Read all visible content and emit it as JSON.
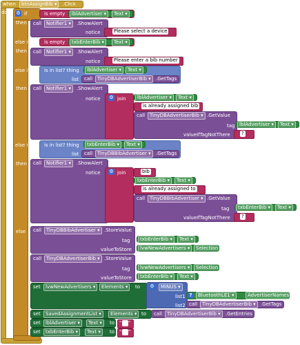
{
  "event": {
    "when": "when",
    "component": "btnAssignBib",
    "event": ".Click",
    "do": "do"
  },
  "keywords": {
    "if": "if",
    "then": "then",
    "else_if": "else if",
    "else": "else",
    "call": "call",
    "set": "set",
    "to": "to",
    "notice": "notice",
    "tag": "tag",
    "valueToStore": "valueToStore",
    "valueIfTagNotThere": "valueIfTagNotThere",
    "list": "list",
    "list1": "list1",
    "list2": "list2",
    "join": "join",
    "is_empty": "is empty",
    "is_in_list": "is in list? thing",
    "minus": "MINUS"
  },
  "props": {
    "text": "Text",
    "elements": "Elements",
    "selection": "Selection",
    "advertiser_names": "AdvertiserNames"
  },
  "components": {
    "lblAdvertiser": "lblAdvertiser",
    "txbEnterBib": "txbEnterBib",
    "notifier": "Notifier1",
    "db_adv_bib": "TinyDBAdvertiserBib",
    "db_bib_adv": "TinyDBBibAdvertiser",
    "lvw_new": "lvwNewAdvertisers",
    "ble": "BluetoothLE1",
    "saved_list": "SavedAssignmentList"
  },
  "methods": {
    "show_alert": ".ShowAlert",
    "get_tags": ".GetTags",
    "get_value": ".GetValue",
    "store_value": ".StoreValue",
    "get_entries": ".GetEntries"
  },
  "strings": {
    "select_device": "Please select a device",
    "enter_bib": "Please enter a bib number",
    "already_bib": "is already assigned bib",
    "already_to": "is already assigned to",
    "bib": "bib",
    "q": "?"
  },
  "quote": "\""
}
